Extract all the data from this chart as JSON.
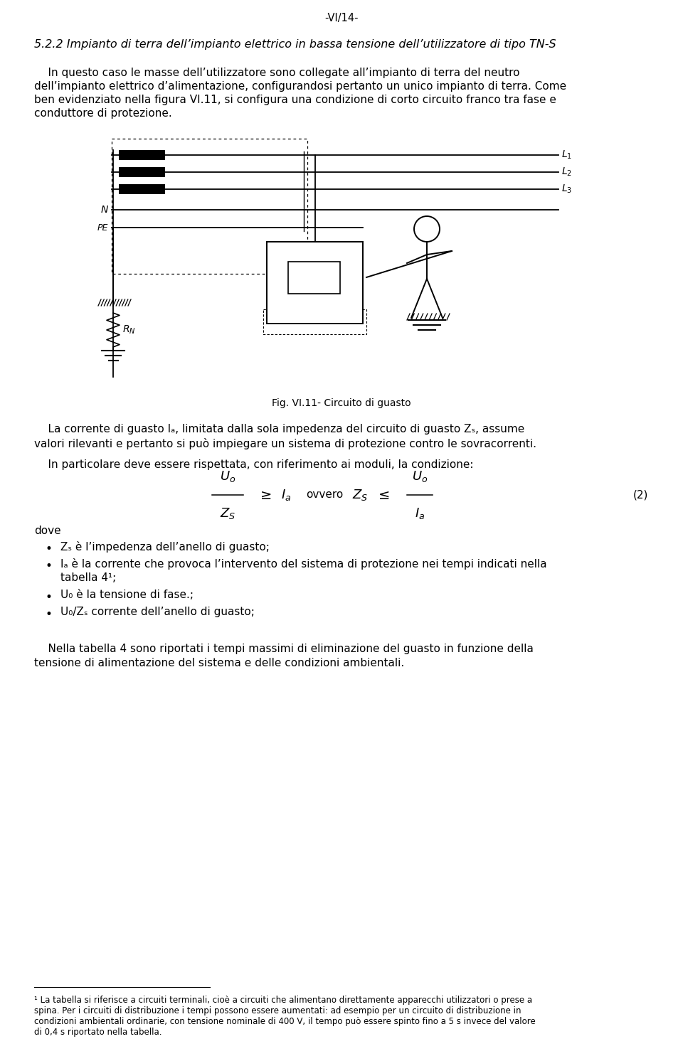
{
  "page_header": "-VI/14-",
  "section_title": "5.2.2 Impianto di terra dell’impianto elettrico in bassa tensione dell’utilizzatore di tipo TN-S",
  "para1_lines": [
    "    In questo caso le masse dell’utilizzatore sono collegate all’impianto di terra del neutro",
    "dell’impianto elettrico d’alimentazione, configurandosi pertanto un unico impianto di terra. Come",
    "ben evidenziato nella figura VI.11, si configura una condizione di corto circuito franco tra fase e",
    "conduttore di protezione."
  ],
  "fig_caption": "Fig. VI.11- Circuito di guasto",
  "para2_lines": [
    "    La corrente di guasto Iₐ, limitata dalla sola impedenza del circuito di guasto Zₛ, assume",
    "valori rilevanti e pertanto si può impiegare un sistema di protezione contro le sovracorrenti."
  ],
  "para3": "    In particolare deve essere rispettata, con riferimento ai moduli, la condizione:",
  "dove_label": "dove",
  "bullet_items": [
    [
      "Zₛ è l’impedenza dell’anello di guasto;",
      false
    ],
    [
      "Iₐ è la corrente che provoca l’intervento del sistema di protezione nei tempi indicati nella",
      false
    ],
    [
      "tabella 4¹;",
      true
    ],
    [
      "U₀ è la tensione di fase.;",
      false
    ],
    [
      "U₀/Zₛ corrente dell’anello di guasto;",
      false
    ]
  ],
  "para4_lines": [
    "    Nella tabella 4 sono riportati i tempi massimi di eliminazione del guasto in funzione della",
    "tensione di alimentazione del sistema e delle condizioni ambientali."
  ],
  "footnote_lines": [
    "¹ La tabella si riferisce a circuiti terminali, cioè a circuiti che alimentano direttamente apparecchi utilizzatori o prese a",
    "spina. Per i circuiti di distribuzione i tempi possono essere aumentati: ad esempio per un circuito di distribuzione in",
    "condizioni ambientali ordinarie, con tensione nominale di 400 V, il tempo può essere spinto fino a 5 s invece del valore",
    "di 0,4 s riportato nella tabella."
  ],
  "bg_color": "#ffffff",
  "text_color": "#000000"
}
